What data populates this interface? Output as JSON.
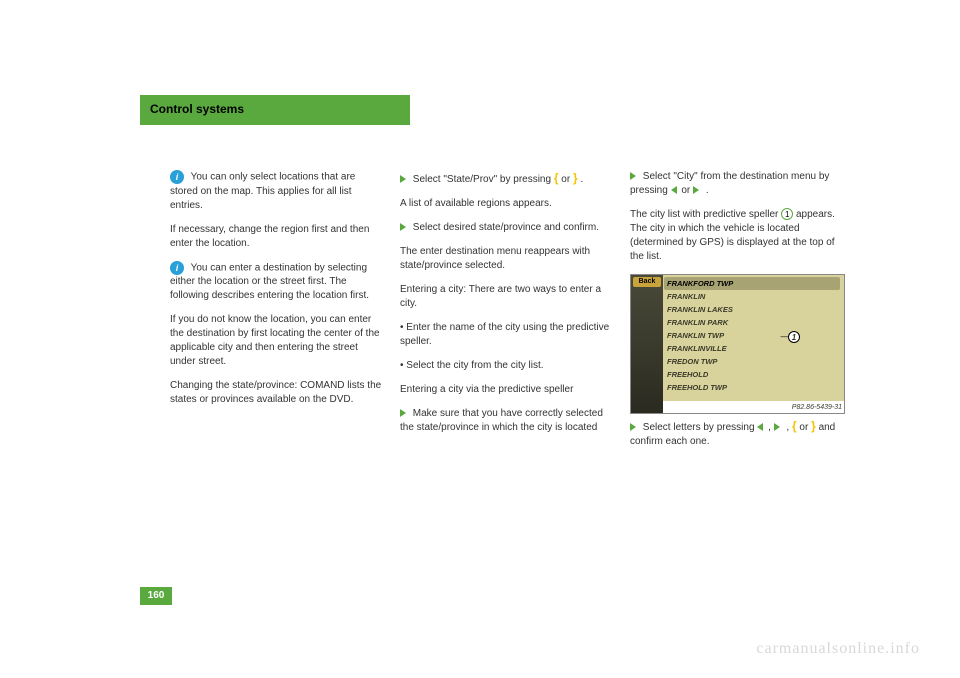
{
  "header": "Control systems",
  "pageNumber": "160",
  "col1": {
    "note1_prefix": "",
    "note1_body": "You can only select locations that are stored on the map. This applies for all list entries.",
    "para1": "If necessary, change the region first and then enter the location.",
    "note2_body": "You can enter a destination by selecting either the location or the street first. The following describes entering the location first.",
    "para2": "If you do not know the location, you can enter the destination by first locating the center of the applicable city and then entering the street under street.",
    "para3": "Changing the state/province: COMAND lists the states or provinces available on the DVD."
  },
  "col2": {
    "para1_a": "Select \"State/Prov\" by pressing",
    "para1_b": "or",
    "para1_c": ".",
    "para1_d": "A list of available regions appears.",
    "para2": "Select desired state/province and confirm.",
    "para2b": "The enter destination menu reappears with state/province selected.",
    "para3": "Entering a city: There are two ways to enter a city.",
    "bullet1": "Enter the name of the city using the predictive speller.",
    "bullet2": "Select the city from the city list.",
    "para4": "Entering a city via the predictive speller",
    "para5": "Make sure that you have correctly selected the state/province in which the city is located"
  },
  "col3": {
    "para1_a": "Select \"City\" from the destination menu by pressing",
    "para1_b": "or",
    "para1_c": ".",
    "para2_a": "The city list with predictive speller",
    "para2_b": "appears. The city in which the vehicle is located (determined by GPS) is displayed at the top of the list.",
    "navList": {
      "back": "Back",
      "rows": [
        "FRANKFORD TWP",
        "FRANKLIN",
        "FRANKLIN LAKES",
        "FRANKLIN PARK",
        "FRANKLIN TWP",
        "FRANKLINVILLE",
        "FREDON TWP",
        "FREEHOLD",
        "FREEHOLD TWP"
      ],
      "pn": "P82.86-5439-31"
    },
    "para3_a": "Select letters by pressing",
    "para3_b": ",",
    "para3_c": ",",
    "para3_d": "or",
    "para3_e": "and confirm each one."
  },
  "watermark": "carmanualsonline.info"
}
